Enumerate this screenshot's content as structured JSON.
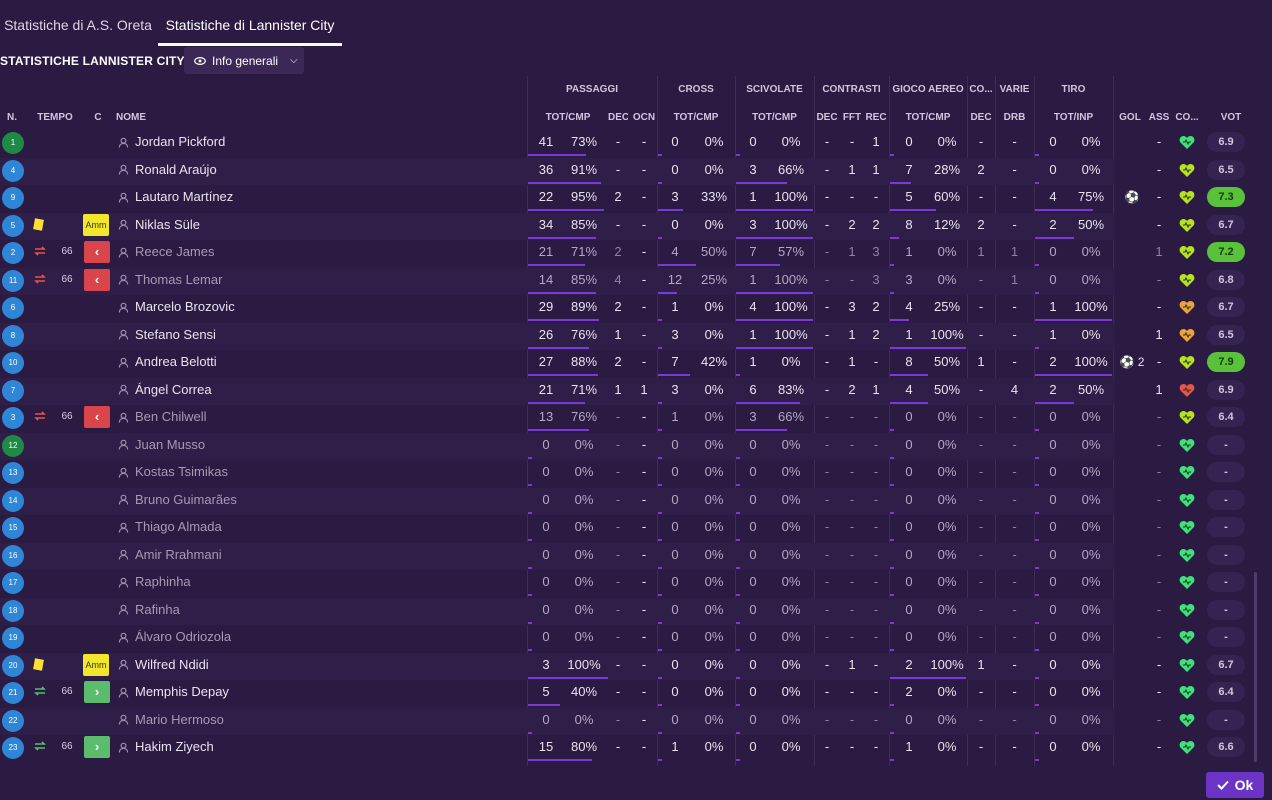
{
  "tabs": [
    "Statistiche di A.S. Oreta",
    "Statistiche di Lannister City"
  ],
  "active_tab": 1,
  "title": "STATISTICHE LANNISTER CITY",
  "view_dropdown": "Info generali",
  "group_headers": [
    "PASSAGGI",
    "CROSS",
    "SCIVOLATE",
    "CONTRASTI",
    "GIOCO AEREO",
    "CO...",
    "VARIE",
    "TIRO"
  ],
  "col_headers": {
    "num": "N.",
    "time": "TEMPO",
    "c": "C",
    "name": "NOME",
    "pass_tc": "TOT/CMP",
    "dec": "DEC",
    "ocn": "OCN",
    "cross_tc": "TOT/CMP",
    "tack_tc": "TOT/CMP",
    "con_dec": "DEC",
    "fft": "FFT",
    "rec": "REC",
    "air_tc": "TOT/CMP",
    "co_dec": "DEC",
    "drb": "DRB",
    "shot_ti": "TOT/INP",
    "gol": "GOL",
    "ass": "ASS",
    "cond": "CO...",
    "vot": "VOT"
  },
  "colors": {
    "bg": "#2b1a42",
    "accent": "#7a3ad9",
    "heart_green": "#3de27a",
    "heart_yellow": "#b9e21e",
    "heart_orange": "#f0a23a",
    "heart_red": "#e8534a"
  },
  "players": [
    {
      "n": "1",
      "gk": true,
      "name": "Jordan Pickford",
      "dim": false,
      "card": "",
      "sub": "",
      "min": "",
      "p": [
        "41",
        "73%",
        "-",
        "-"
      ],
      "pb": 0.73,
      "cr": [
        "0",
        "0%"
      ],
      "crb": 0,
      "tk": [
        "0",
        "0%"
      ],
      "tkb": 0,
      "ct": [
        "-",
        "-",
        "1"
      ],
      "air": [
        "0",
        "0%"
      ],
      "airb": 0,
      "cod": "-",
      "drb": "-",
      "sh": [
        "0",
        "0%"
      ],
      "shb": 0,
      "gol": "",
      "ass": "-",
      "heart": "green",
      "vot": "6.9",
      "hi": false
    },
    {
      "n": "4",
      "gk": false,
      "name": "Ronald Araújo",
      "dim": false,
      "card": "",
      "sub": "",
      "min": "",
      "p": [
        "36",
        "91%",
        "-",
        "-"
      ],
      "pb": 0.91,
      "cr": [
        "0",
        "0%"
      ],
      "crb": 0,
      "tk": [
        "3",
        "66%"
      ],
      "tkb": 0.66,
      "ct": [
        "-",
        "1",
        "1"
      ],
      "air": [
        "7",
        "28%"
      ],
      "airb": 0.28,
      "cod": "2",
      "drb": "-",
      "sh": [
        "0",
        "0%"
      ],
      "shb": 0,
      "gol": "",
      "ass": "-",
      "heart": "yellow",
      "vot": "6.5",
      "hi": false
    },
    {
      "n": "9",
      "gk": false,
      "name": "Lautaro Martínez",
      "dim": false,
      "card": "",
      "sub": "",
      "min": "",
      "p": [
        "22",
        "95%",
        "2",
        "-"
      ],
      "pb": 0.95,
      "cr": [
        "3",
        "33%"
      ],
      "crb": 0.33,
      "tk": [
        "1",
        "100%"
      ],
      "tkb": 1,
      "ct": [
        "-",
        "-",
        "-"
      ],
      "air": [
        "5",
        "60%"
      ],
      "airb": 0.6,
      "cod": "-",
      "drb": "-",
      "sh": [
        "4",
        "75%"
      ],
      "shb": 0.75,
      "gol": "⚽",
      "ass": "-",
      "heart": "yellow",
      "vot": "7.3",
      "hi": true
    },
    {
      "n": "5",
      "gk": false,
      "name": "Niklas Süle",
      "dim": false,
      "card": "Amm",
      "sub": "",
      "min": "",
      "p": [
        "34",
        "85%",
        "-",
        "-"
      ],
      "pb": 0.85,
      "cr": [
        "0",
        "0%"
      ],
      "crb": 0,
      "tk": [
        "3",
        "100%"
      ],
      "tkb": 1,
      "ct": [
        "-",
        "2",
        "2"
      ],
      "air": [
        "8",
        "12%"
      ],
      "airb": 0.12,
      "cod": "2",
      "drb": "-",
      "sh": [
        "2",
        "50%"
      ],
      "shb": 0.5,
      "gol": "",
      "ass": "-",
      "heart": "yellow",
      "vot": "6.7",
      "hi": false
    },
    {
      "n": "2",
      "gk": false,
      "name": "Reece James",
      "dim": true,
      "card": "",
      "sub": "out",
      "min": "66",
      "p": [
        "21",
        "71%",
        "2",
        "-"
      ],
      "pb": 0.71,
      "cr": [
        "4",
        "50%"
      ],
      "crb": 0.5,
      "tk": [
        "7",
        "57%"
      ],
      "tkb": 0.57,
      "ct": [
        "-",
        "1",
        "3"
      ],
      "air": [
        "1",
        "0%"
      ],
      "airb": 0,
      "cod": "1",
      "drb": "1",
      "sh": [
        "0",
        "0%"
      ],
      "shb": 0,
      "gol": "",
      "ass": "1",
      "heart": "yellow",
      "vot": "7.2",
      "hi": true
    },
    {
      "n": "11",
      "gk": false,
      "name": "Thomas Lemar",
      "dim": true,
      "card": "",
      "sub": "out",
      "min": "66",
      "p": [
        "14",
        "85%",
        "4",
        "-"
      ],
      "pb": 0.85,
      "cr": [
        "12",
        "25%"
      ],
      "crb": 0.25,
      "tk": [
        "1",
        "100%"
      ],
      "tkb": 1,
      "ct": [
        "-",
        "-",
        "3"
      ],
      "air": [
        "3",
        "0%"
      ],
      "airb": 0,
      "cod": "-",
      "drb": "1",
      "sh": [
        "0",
        "0%"
      ],
      "shb": 0,
      "gol": "",
      "ass": "-",
      "heart": "yellow",
      "vot": "6.8",
      "hi": false
    },
    {
      "n": "6",
      "gk": false,
      "name": "Marcelo Brozovic",
      "dim": false,
      "card": "",
      "sub": "",
      "min": "",
      "p": [
        "29",
        "89%",
        "2",
        "-"
      ],
      "pb": 0.89,
      "cr": [
        "1",
        "0%"
      ],
      "crb": 0,
      "tk": [
        "4",
        "100%"
      ],
      "tkb": 1,
      "ct": [
        "-",
        "3",
        "2"
      ],
      "air": [
        "4",
        "25%"
      ],
      "airb": 0.25,
      "cod": "-",
      "drb": "-",
      "sh": [
        "1",
        "100%"
      ],
      "shb": 1,
      "gol": "",
      "ass": "-",
      "heart": "orange",
      "vot": "6.7",
      "hi": false
    },
    {
      "n": "8",
      "gk": false,
      "name": "Stefano Sensi",
      "dim": false,
      "card": "",
      "sub": "",
      "min": "",
      "p": [
        "26",
        "76%",
        "1",
        "-"
      ],
      "pb": 0.76,
      "cr": [
        "3",
        "0%"
      ],
      "crb": 0,
      "tk": [
        "1",
        "100%"
      ],
      "tkb": 1,
      "ct": [
        "-",
        "1",
        "2"
      ],
      "air": [
        "1",
        "100%"
      ],
      "airb": 1,
      "cod": "-",
      "drb": "-",
      "sh": [
        "1",
        "0%"
      ],
      "shb": 0,
      "gol": "",
      "ass": "1",
      "heart": "orange",
      "vot": "6.5",
      "hi": false
    },
    {
      "n": "10",
      "gk": false,
      "name": "Andrea Belotti",
      "dim": false,
      "card": "",
      "sub": "",
      "min": "",
      "p": [
        "27",
        "88%",
        "2",
        "-"
      ],
      "pb": 0.88,
      "cr": [
        "7",
        "42%"
      ],
      "crb": 0.42,
      "tk": [
        "1",
        "0%"
      ],
      "tkb": 0,
      "ct": [
        "-",
        "1",
        "-"
      ],
      "air": [
        "8",
        "50%"
      ],
      "airb": 0.5,
      "cod": "1",
      "drb": "-",
      "sh": [
        "2",
        "100%"
      ],
      "shb": 1,
      "gol": "⚽ 2",
      "ass": "-",
      "heart": "yellow",
      "vot": "7.9",
      "hi": true
    },
    {
      "n": "7",
      "gk": false,
      "name": "Ángel Correa",
      "dim": false,
      "card": "",
      "sub": "",
      "min": "",
      "p": [
        "21",
        "71%",
        "1",
        "1"
      ],
      "pb": 0.71,
      "cr": [
        "3",
        "0%"
      ],
      "crb": 0,
      "tk": [
        "6",
        "83%"
      ],
      "tkb": 0.83,
      "ct": [
        "-",
        "2",
        "1"
      ],
      "air": [
        "4",
        "50%"
      ],
      "airb": 0.5,
      "cod": "-",
      "drb": "4",
      "sh": [
        "2",
        "50%"
      ],
      "shb": 0.5,
      "gol": "",
      "ass": "1",
      "heart": "red",
      "vot": "6.9",
      "hi": false
    },
    {
      "n": "3",
      "gk": false,
      "name": "Ben Chilwell",
      "dim": true,
      "card": "",
      "sub": "out",
      "min": "66",
      "p": [
        "13",
        "76%",
        "-",
        "-"
      ],
      "pb": 0.76,
      "cr": [
        "1",
        "0%"
      ],
      "crb": 0,
      "tk": [
        "3",
        "66%"
      ],
      "tkb": 0.66,
      "ct": [
        "-",
        "-",
        "-"
      ],
      "air": [
        "0",
        "0%"
      ],
      "airb": 0,
      "cod": "-",
      "drb": "-",
      "sh": [
        "0",
        "0%"
      ],
      "shb": 0,
      "gol": "",
      "ass": "-",
      "heart": "yellow",
      "vot": "6.4",
      "hi": false
    },
    {
      "n": "12",
      "gk": true,
      "name": "Juan Musso",
      "dim": true,
      "card": "",
      "sub": "",
      "min": "",
      "p": [
        "0",
        "0%",
        "-",
        "-"
      ],
      "pb": 0,
      "cr": [
        "0",
        "0%"
      ],
      "crb": 0,
      "tk": [
        "0",
        "0%"
      ],
      "tkb": 0,
      "ct": [
        "-",
        "-",
        "-"
      ],
      "air": [
        "0",
        "0%"
      ],
      "airb": 0,
      "cod": "-",
      "drb": "-",
      "sh": [
        "0",
        "0%"
      ],
      "shb": 0,
      "gol": "",
      "ass": "-",
      "heart": "green",
      "vot": "-",
      "hi": false
    },
    {
      "n": "13",
      "gk": false,
      "name": "Kostas Tsimikas",
      "dim": true,
      "card": "",
      "sub": "",
      "min": "",
      "p": [
        "0",
        "0%",
        "-",
        "-"
      ],
      "pb": 0,
      "cr": [
        "0",
        "0%"
      ],
      "crb": 0,
      "tk": [
        "0",
        "0%"
      ],
      "tkb": 0,
      "ct": [
        "-",
        "-",
        "-"
      ],
      "air": [
        "0",
        "0%"
      ],
      "airb": 0,
      "cod": "-",
      "drb": "-",
      "sh": [
        "0",
        "0%"
      ],
      "shb": 0,
      "gol": "",
      "ass": "-",
      "heart": "green",
      "vot": "-",
      "hi": false
    },
    {
      "n": "14",
      "gk": false,
      "name": "Bruno Guimarães",
      "dim": true,
      "card": "",
      "sub": "",
      "min": "",
      "p": [
        "0",
        "0%",
        "-",
        "-"
      ],
      "pb": 0,
      "cr": [
        "0",
        "0%"
      ],
      "crb": 0,
      "tk": [
        "0",
        "0%"
      ],
      "tkb": 0,
      "ct": [
        "-",
        "-",
        "-"
      ],
      "air": [
        "0",
        "0%"
      ],
      "airb": 0,
      "cod": "-",
      "drb": "-",
      "sh": [
        "0",
        "0%"
      ],
      "shb": 0,
      "gol": "",
      "ass": "-",
      "heart": "green",
      "vot": "-",
      "hi": false
    },
    {
      "n": "15",
      "gk": false,
      "name": "Thiago Almada",
      "dim": true,
      "card": "",
      "sub": "",
      "min": "",
      "p": [
        "0",
        "0%",
        "-",
        "-"
      ],
      "pb": 0,
      "cr": [
        "0",
        "0%"
      ],
      "crb": 0,
      "tk": [
        "0",
        "0%"
      ],
      "tkb": 0,
      "ct": [
        "-",
        "-",
        "-"
      ],
      "air": [
        "0",
        "0%"
      ],
      "airb": 0,
      "cod": "-",
      "drb": "-",
      "sh": [
        "0",
        "0%"
      ],
      "shb": 0,
      "gol": "",
      "ass": "-",
      "heart": "green",
      "vot": "-",
      "hi": false
    },
    {
      "n": "16",
      "gk": false,
      "name": "Amir Rrahmani",
      "dim": true,
      "card": "",
      "sub": "",
      "min": "",
      "p": [
        "0",
        "0%",
        "-",
        "-"
      ],
      "pb": 0,
      "cr": [
        "0",
        "0%"
      ],
      "crb": 0,
      "tk": [
        "0",
        "0%"
      ],
      "tkb": 0,
      "ct": [
        "-",
        "-",
        "-"
      ],
      "air": [
        "0",
        "0%"
      ],
      "airb": 0,
      "cod": "-",
      "drb": "-",
      "sh": [
        "0",
        "0%"
      ],
      "shb": 0,
      "gol": "",
      "ass": "-",
      "heart": "green",
      "vot": "-",
      "hi": false
    },
    {
      "n": "17",
      "gk": false,
      "name": "Raphinha",
      "dim": true,
      "card": "",
      "sub": "",
      "min": "",
      "p": [
        "0",
        "0%",
        "-",
        "-"
      ],
      "pb": 0,
      "cr": [
        "0",
        "0%"
      ],
      "crb": 0,
      "tk": [
        "0",
        "0%"
      ],
      "tkb": 0,
      "ct": [
        "-",
        "-",
        "-"
      ],
      "air": [
        "0",
        "0%"
      ],
      "airb": 0,
      "cod": "-",
      "drb": "-",
      "sh": [
        "0",
        "0%"
      ],
      "shb": 0,
      "gol": "",
      "ass": "-",
      "heart": "green",
      "vot": "-",
      "hi": false
    },
    {
      "n": "18",
      "gk": false,
      "name": "Rafinha",
      "dim": true,
      "card": "",
      "sub": "",
      "min": "",
      "p": [
        "0",
        "0%",
        "-",
        "-"
      ],
      "pb": 0,
      "cr": [
        "0",
        "0%"
      ],
      "crb": 0,
      "tk": [
        "0",
        "0%"
      ],
      "tkb": 0,
      "ct": [
        "-",
        "-",
        "-"
      ],
      "air": [
        "0",
        "0%"
      ],
      "airb": 0,
      "cod": "-",
      "drb": "-",
      "sh": [
        "0",
        "0%"
      ],
      "shb": 0,
      "gol": "",
      "ass": "-",
      "heart": "green",
      "vot": "-",
      "hi": false
    },
    {
      "n": "19",
      "gk": false,
      "name": "Álvaro Odriozola",
      "dim": true,
      "card": "",
      "sub": "",
      "min": "",
      "p": [
        "0",
        "0%",
        "-",
        "-"
      ],
      "pb": 0,
      "cr": [
        "0",
        "0%"
      ],
      "crb": 0,
      "tk": [
        "0",
        "0%"
      ],
      "tkb": 0,
      "ct": [
        "-",
        "-",
        "-"
      ],
      "air": [
        "0",
        "0%"
      ],
      "airb": 0,
      "cod": "-",
      "drb": "-",
      "sh": [
        "0",
        "0%"
      ],
      "shb": 0,
      "gol": "",
      "ass": "-",
      "heart": "green",
      "vot": "-",
      "hi": false
    },
    {
      "n": "20",
      "gk": false,
      "name": "Wilfred Ndidi",
      "dim": false,
      "card": "Amm",
      "sub": "",
      "min": "",
      "p": [
        "3",
        "100%",
        "-",
        "-"
      ],
      "pb": 1,
      "cr": [
        "0",
        "0%"
      ],
      "crb": 0,
      "tk": [
        "0",
        "0%"
      ],
      "tkb": 0,
      "ct": [
        "-",
        "1",
        "-"
      ],
      "air": [
        "2",
        "100%"
      ],
      "airb": 1,
      "cod": "1",
      "drb": "-",
      "sh": [
        "0",
        "0%"
      ],
      "shb": 0,
      "gol": "",
      "ass": "-",
      "heart": "green",
      "vot": "6.7",
      "hi": false
    },
    {
      "n": "21",
      "gk": false,
      "name": "Memphis Depay",
      "dim": false,
      "card": "",
      "sub": "in",
      "min": "66",
      "p": [
        "5",
        "40%",
        "-",
        "-"
      ],
      "pb": 0.4,
      "cr": [
        "0",
        "0%"
      ],
      "crb": 0,
      "tk": [
        "0",
        "0%"
      ],
      "tkb": 0,
      "ct": [
        "-",
        "-",
        "-"
      ],
      "air": [
        "2",
        "0%"
      ],
      "airb": 0,
      "cod": "-",
      "drb": "-",
      "sh": [
        "0",
        "0%"
      ],
      "shb": 0,
      "gol": "",
      "ass": "-",
      "heart": "green",
      "vot": "6.4",
      "hi": false
    },
    {
      "n": "22",
      "gk": false,
      "name": "Mario Hermoso",
      "dim": true,
      "card": "",
      "sub": "",
      "min": "",
      "p": [
        "0",
        "0%",
        "-",
        "-"
      ],
      "pb": 0,
      "cr": [
        "0",
        "0%"
      ],
      "crb": 0,
      "tk": [
        "0",
        "0%"
      ],
      "tkb": 0,
      "ct": [
        "-",
        "-",
        "-"
      ],
      "air": [
        "0",
        "0%"
      ],
      "airb": 0,
      "cod": "-",
      "drb": "-",
      "sh": [
        "0",
        "0%"
      ],
      "shb": 0,
      "gol": "",
      "ass": "-",
      "heart": "green",
      "vot": "-",
      "hi": false
    },
    {
      "n": "23",
      "gk": false,
      "name": "Hakim Ziyech",
      "dim": false,
      "card": "",
      "sub": "in",
      "min": "66",
      "p": [
        "15",
        "80%",
        "-",
        "-"
      ],
      "pb": 0.8,
      "cr": [
        "1",
        "0%"
      ],
      "crb": 0,
      "tk": [
        "0",
        "0%"
      ],
      "tkb": 0,
      "ct": [
        "-",
        "-",
        "-"
      ],
      "air": [
        "1",
        "0%"
      ],
      "airb": 0,
      "cod": "-",
      "drb": "-",
      "sh": [
        "0",
        "0%"
      ],
      "shb": 0,
      "gol": "",
      "ass": "-",
      "heart": "green",
      "vot": "6.6",
      "hi": false
    }
  ],
  "ok_button": "Ok"
}
